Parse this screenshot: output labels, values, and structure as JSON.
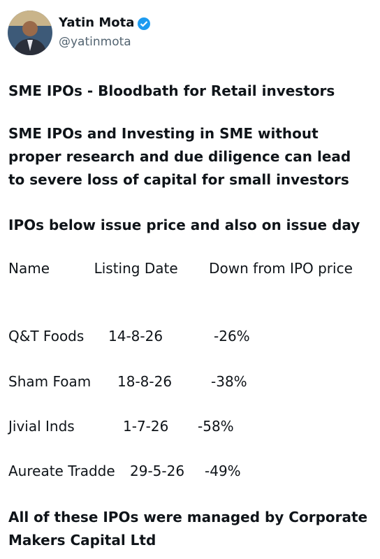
{
  "author": {
    "name": "Yatin Mota",
    "handle": "@yatinmota"
  },
  "paragraphs": [
    "SME IPOs - Bloodbath for Retail investors",
    "SME IPOs and Investing in SME without proper research and due diligence can lead to severe loss of capital for small investors",
    "IPOs below issue price and also on issue day"
  ],
  "table": {
    "header": "Name          Listing Date       Down from IPO price",
    "rows": [
      [
        "Q&T Foods",
        "14-8-26",
        "-26%"
      ],
      [
        "Sham Foam",
        "18-8-26",
        "-38%"
      ],
      [
        "Jivial Inds",
        "1-7-26",
        "-58%"
      ],
      [
        "Aureate Tradde",
        "29-5-26",
        "-49%"
      ]
    ]
  },
  "footer": "All of these IPOs were managed by Corporate Makers Capital Ltd"
}
